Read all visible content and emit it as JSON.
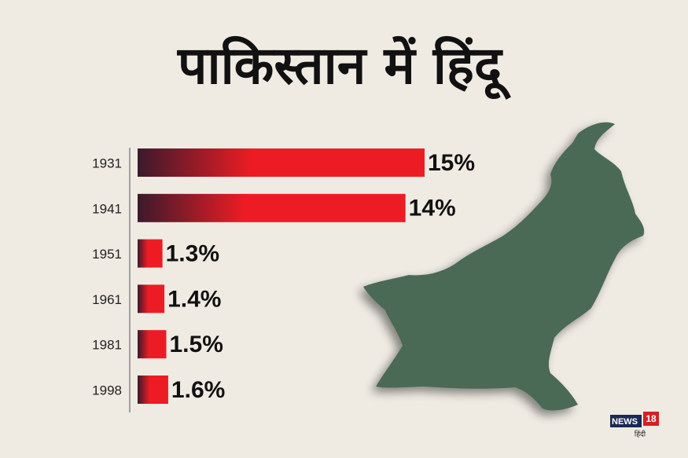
{
  "chart_data": {
    "type": "bar",
    "orientation": "horizontal",
    "title": "पाकिस्तान में हिंदू",
    "categories": [
      "1931",
      "1941",
      "1951",
      "1961",
      "1981",
      "1998"
    ],
    "values": [
      15,
      14,
      1.3,
      1.4,
      1.5,
      1.6
    ],
    "value_labels": [
      "15%",
      "14%",
      "1.3%",
      "1.4%",
      "1.5%",
      "1.6%"
    ],
    "color": "#ed1c24",
    "gradient_start": "#3b1a2c"
  },
  "branding": {
    "name": "NEWS",
    "number": "18",
    "language": "हिंदी"
  }
}
